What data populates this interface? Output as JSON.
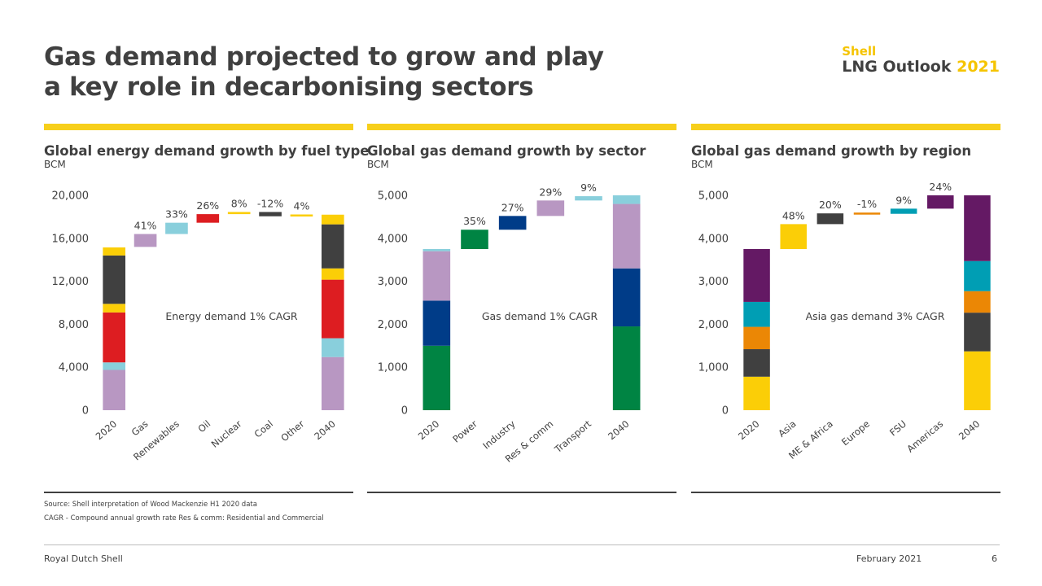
{
  "title": {
    "line1": "Gas demand projected to grow and play",
    "line2": "a key role in decarbonising sectors"
  },
  "logo": {
    "brand": "Shell",
    "product": "LNG Outlook",
    "year": "2021"
  },
  "colors": {
    "yellow": "#fbce07",
    "bar_yellow": "#f7cf1b",
    "dark": "#404040",
    "red": "#dd1d21",
    "light_blue": "#89cfdc",
    "purple": "#b897c2",
    "green": "#008443",
    "navy": "#003c88",
    "teal": "#009eb4",
    "orange": "#eb8705",
    "plum": "#641964"
  },
  "chart_data": [
    {
      "type": "waterfall",
      "title": "Global energy demand growth by fuel type",
      "ylabel": "BCM",
      "ylim": [
        0,
        20000
      ],
      "yticks": [
        0,
        4000,
        8000,
        12000,
        16000,
        20000
      ],
      "ytick_labels": [
        "0",
        "4,000",
        "8,000",
        "12,000",
        "16,000",
        "20,000"
      ],
      "annotation": "Energy demand 1% CAGR",
      "categories": [
        "2020",
        "Gas",
        "Renewables",
        "Oil",
        "Nuclear",
        "Coal",
        "Other",
        "2040"
      ],
      "stacks": {
        "2020": [
          {
            "name": "Gas",
            "value": 3750,
            "color": "#b897c2"
          },
          {
            "name": "Renewables",
            "value": 700,
            "color": "#89cfdc"
          },
          {
            "name": "Oil",
            "value": 4650,
            "color": "#dd1d21"
          },
          {
            "name": "Nuclear",
            "value": 800,
            "color": "#fbce07"
          },
          {
            "name": "Coal",
            "value": 4500,
            "color": "#404040"
          },
          {
            "name": "Other",
            "value": 750,
            "color": "#fbce07"
          }
        ],
        "2040": [
          {
            "name": "Gas",
            "value": 4950,
            "color": "#b897c2"
          },
          {
            "name": "Renewables",
            "value": 1750,
            "color": "#89cfdc"
          },
          {
            "name": "Oil",
            "value": 5450,
            "color": "#dd1d21"
          },
          {
            "name": "Nuclear",
            "value": 1050,
            "color": "#fbce07"
          },
          {
            "name": "Coal",
            "value": 4100,
            "color": "#404040"
          },
          {
            "name": "Other",
            "value": 900,
            "color": "#fbce07"
          }
        ]
      },
      "steps": [
        {
          "category": "Gas",
          "from": 15200,
          "to": 16400,
          "label": "41%",
          "color": "#b897c2"
        },
        {
          "category": "Renewables",
          "from": 16400,
          "to": 17450,
          "label": "33%",
          "color": "#89cfdc"
        },
        {
          "category": "Oil",
          "from": 17450,
          "to": 18250,
          "label": "26%",
          "color": "#dd1d21"
        },
        {
          "category": "Nuclear",
          "from": 18250,
          "to": 18450,
          "label": "8%",
          "color": "#fbce07"
        },
        {
          "category": "Coal",
          "from": 18450,
          "to": 18050,
          "label": "-12%",
          "color": "#404040"
        },
        {
          "category": "Other",
          "from": 18050,
          "to": 18200,
          "label": "4%",
          "color": "#fbce07"
        }
      ]
    },
    {
      "type": "waterfall",
      "title": "Global gas demand growth by sector",
      "ylabel": "BCM",
      "ylim": [
        0,
        5000
      ],
      "yticks": [
        0,
        1000,
        2000,
        3000,
        4000,
        5000
      ],
      "ytick_labels": [
        "0",
        "1,000",
        "2,000",
        "3,000",
        "4,000",
        "5,000"
      ],
      "annotation": "Gas demand 1% CAGR",
      "categories": [
        "2020",
        "Power",
        "Industry",
        "Res & comm",
        "Transport",
        "2040"
      ],
      "stacks": {
        "2020": [
          {
            "name": "Power",
            "value": 1500,
            "color": "#008443"
          },
          {
            "name": "Industry",
            "value": 1050,
            "color": "#003c88"
          },
          {
            "name": "Res & comm",
            "value": 1150,
            "color": "#b897c2"
          },
          {
            "name": "Transport",
            "value": 50,
            "color": "#89cfdc"
          }
        ],
        "2040": [
          {
            "name": "Power",
            "value": 1950,
            "color": "#008443"
          },
          {
            "name": "Industry",
            "value": 1350,
            "color": "#003c88"
          },
          {
            "name": "Res & comm",
            "value": 1500,
            "color": "#b897c2"
          },
          {
            "name": "Transport",
            "value": 200,
            "color": "#89cfdc"
          }
        ]
      },
      "steps": [
        {
          "category": "Power",
          "from": 3750,
          "to": 4200,
          "label": "35%",
          "color": "#008443"
        },
        {
          "category": "Industry",
          "from": 4200,
          "to": 4520,
          "label": "27%",
          "color": "#003c88"
        },
        {
          "category": "Res & comm",
          "from": 4520,
          "to": 4880,
          "label": "29%",
          "color": "#b897c2"
        },
        {
          "category": "Transport",
          "from": 4880,
          "to": 4980,
          "label": "9%",
          "color": "#89cfdc"
        }
      ]
    },
    {
      "type": "waterfall",
      "title": "Global gas demand growth by region",
      "ylabel": "BCM",
      "ylim": [
        0,
        5000
      ],
      "yticks": [
        0,
        1000,
        2000,
        3000,
        4000,
        5000
      ],
      "ytick_labels": [
        "0",
        "1,000",
        "2,000",
        "3,000",
        "4,000",
        "5,000"
      ],
      "annotation": "Asia gas demand 3% CAGR",
      "categories": [
        "2020",
        "Asia",
        "ME & Africa",
        "Europe",
        "FSU",
        "Americas",
        "2040"
      ],
      "stacks": {
        "2020": [
          {
            "name": "Asia",
            "value": 780,
            "color": "#fbce07"
          },
          {
            "name": "ME & Africa",
            "value": 640,
            "color": "#404040"
          },
          {
            "name": "Europe",
            "value": 520,
            "color": "#eb8705"
          },
          {
            "name": "FSU",
            "value": 580,
            "color": "#009eb4"
          },
          {
            "name": "Americas",
            "value": 1230,
            "color": "#641964"
          }
        ],
        "2040": [
          {
            "name": "Asia",
            "value": 1370,
            "color": "#fbce07"
          },
          {
            "name": "ME & Africa",
            "value": 900,
            "color": "#404040"
          },
          {
            "name": "Europe",
            "value": 500,
            "color": "#eb8705"
          },
          {
            "name": "FSU",
            "value": 700,
            "color": "#009eb4"
          },
          {
            "name": "Americas",
            "value": 1530,
            "color": "#641964"
          }
        ]
      },
      "steps": [
        {
          "category": "Asia",
          "from": 3750,
          "to": 4330,
          "label": "48%",
          "color": "#fbce07"
        },
        {
          "category": "ME & Africa",
          "from": 4330,
          "to": 4580,
          "label": "20%",
          "color": "#404040"
        },
        {
          "category": "Europe",
          "from": 4580,
          "to": 4570,
          "label": "-1%",
          "color": "#eb8705"
        },
        {
          "category": "FSU",
          "from": 4570,
          "to": 4690,
          "label": "9%",
          "color": "#009eb4"
        },
        {
          "category": "Americas",
          "from": 4690,
          "to": 5000,
          "label": "24%",
          "color": "#641964"
        }
      ]
    }
  ],
  "footnotes": {
    "source": "Source: Shell interpretation of Wood Mackenzie H1 2020 data",
    "cagr": "CAGR - Compound annual growth rate   Res & comm: Residential and Commercial"
  },
  "footer": {
    "company": "Royal Dutch Shell",
    "date": "February 2021",
    "page": "6"
  }
}
